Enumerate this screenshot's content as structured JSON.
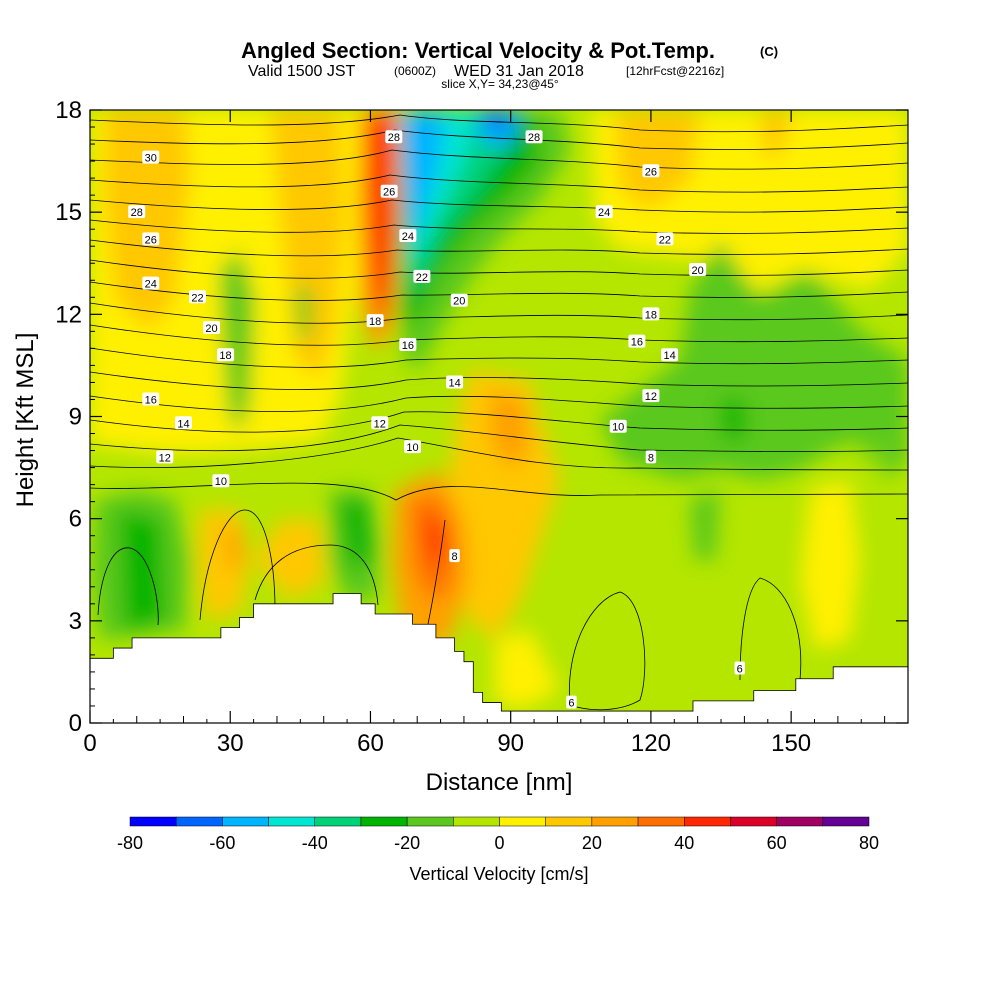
{
  "header": {
    "title": "Angled Section: Vertical Velocity & Pot.Temp.",
    "title_suffix": "(C)",
    "valid_a": "Valid 1500 JST",
    "valid_b": "(0600Z)",
    "valid_c": "WED 31 Jan 2018",
    "valid_d": "[12hrFcst@2216z]",
    "slice": "slice X,Y= 34,23@45°"
  },
  "chart_data": {
    "type": "heatmap",
    "xlabel": "Distance [nm]",
    "ylabel": "Height [Kft MSL]",
    "xlim": [
      0,
      175
    ],
    "ylim": [
      0,
      18
    ],
    "x_ticks": [
      0,
      30,
      60,
      90,
      120,
      150
    ],
    "y_ticks": [
      0,
      3,
      6,
      9,
      12,
      15,
      18
    ],
    "grid": false,
    "colorbar": {
      "title": "Vertical Velocity [cm/s]",
      "ticks": [
        -80,
        -60,
        -40,
        -20,
        0,
        20,
        40,
        60,
        80
      ],
      "levels": [
        -80,
        -70,
        -60,
        -50,
        -40,
        -30,
        -20,
        -10,
        0,
        10,
        20,
        30,
        40,
        50,
        60,
        70,
        80
      ],
      "colors": [
        "#0000ff",
        "#0064ff",
        "#00b4ff",
        "#00e6d2",
        "#00d278",
        "#00b400",
        "#5ac81e",
        "#b4e600",
        "#fff000",
        "#ffc800",
        "#ffa000",
        "#ff6e00",
        "#ff2800",
        "#dc0028",
        "#a00064",
        "#640096"
      ]
    },
    "terrain": [
      [
        0,
        1.9
      ],
      [
        5,
        1.9
      ],
      [
        5,
        2.2
      ],
      [
        9,
        2.2
      ],
      [
        9,
        2.5
      ],
      [
        28,
        2.5
      ],
      [
        28,
        2.8
      ],
      [
        32,
        2.8
      ],
      [
        32,
        3.1
      ],
      [
        35,
        3.1
      ],
      [
        35,
        3.5
      ],
      [
        52,
        3.5
      ],
      [
        52,
        3.8
      ],
      [
        58,
        3.8
      ],
      [
        58,
        3.5
      ],
      [
        61,
        3.5
      ],
      [
        61,
        3.2
      ],
      [
        69,
        3.2
      ],
      [
        69,
        2.9
      ],
      [
        74,
        2.9
      ],
      [
        74,
        2.5
      ],
      [
        78,
        2.5
      ],
      [
        78,
        2.1
      ],
      [
        80,
        2.1
      ],
      [
        80,
        1.8
      ],
      [
        82,
        1.8
      ],
      [
        82,
        0.9
      ],
      [
        84,
        0.9
      ],
      [
        84,
        0.6
      ],
      [
        88,
        0.6
      ],
      [
        88,
        0.35
      ],
      [
        129,
        0.35
      ],
      [
        129,
        0.65
      ],
      [
        142,
        0.65
      ],
      [
        142,
        0.95
      ],
      [
        151,
        0.95
      ],
      [
        151,
        1.3
      ],
      [
        159,
        1.3
      ],
      [
        159,
        1.65
      ],
      [
        175,
        1.65
      ]
    ],
    "theta_labels": [
      {
        "x": 13,
        "y": 16.6,
        "text": "30"
      },
      {
        "x": 10,
        "y": 15.0,
        "text": "28"
      },
      {
        "x": 13,
        "y": 14.2,
        "text": "26"
      },
      {
        "x": 13,
        "y": 12.9,
        "text": "24"
      },
      {
        "x": 23,
        "y": 12.5,
        "text": "22"
      },
      {
        "x": 26,
        "y": 11.6,
        "text": "20"
      },
      {
        "x": 29,
        "y": 10.8,
        "text": "18"
      },
      {
        "x": 13,
        "y": 9.5,
        "text": "16"
      },
      {
        "x": 20,
        "y": 8.8,
        "text": "14"
      },
      {
        "x": 16,
        "y": 7.8,
        "text": "12"
      },
      {
        "x": 28,
        "y": 7.1,
        "text": "10"
      },
      {
        "x": 65,
        "y": 17.2,
        "text": "28"
      },
      {
        "x": 64,
        "y": 15.6,
        "text": "26"
      },
      {
        "x": 68,
        "y": 14.3,
        "text": "24"
      },
      {
        "x": 71,
        "y": 13.1,
        "text": "22"
      },
      {
        "x": 79,
        "y": 12.4,
        "text": "20"
      },
      {
        "x": 61,
        "y": 11.8,
        "text": "18"
      },
      {
        "x": 68,
        "y": 11.1,
        "text": "16"
      },
      {
        "x": 78,
        "y": 10.0,
        "text": "14"
      },
      {
        "x": 62,
        "y": 8.8,
        "text": "12"
      },
      {
        "x": 69,
        "y": 8.1,
        "text": "10"
      },
      {
        "x": 78,
        "y": 4.9,
        "text": "8"
      },
      {
        "x": 95,
        "y": 17.2,
        "text": "28"
      },
      {
        "x": 120,
        "y": 16.2,
        "text": "26"
      },
      {
        "x": 110,
        "y": 15.0,
        "text": "24"
      },
      {
        "x": 123,
        "y": 14.2,
        "text": "22"
      },
      {
        "x": 130,
        "y": 13.3,
        "text": "20"
      },
      {
        "x": 120,
        "y": 12.0,
        "text": "18"
      },
      {
        "x": 117,
        "y": 11.2,
        "text": "16"
      },
      {
        "x": 124,
        "y": 10.8,
        "text": "14"
      },
      {
        "x": 120,
        "y": 9.6,
        "text": "12"
      },
      {
        "x": 113,
        "y": 8.7,
        "text": "10"
      },
      {
        "x": 120,
        "y": 7.8,
        "text": "8"
      },
      {
        "x": 103,
        "y": 0.6,
        "text": "6"
      },
      {
        "x": 139,
        "y": 1.6,
        "text": "6"
      }
    ]
  }
}
